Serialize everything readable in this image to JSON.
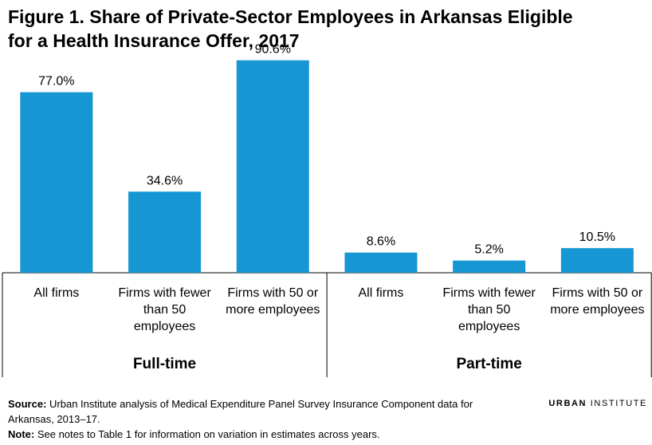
{
  "title_lines": [
    "Figure 1. Share of Private-Sector Employees in Arkansas Eligible",
    "for a Health Insurance Offer, 2017"
  ],
  "chart_data": {
    "type": "bar",
    "title": "Figure 1. Share of Private-Sector Employees in Arkansas Eligible for a Health Insurance Offer, 2017",
    "ylim": [
      0,
      100
    ],
    "grid": false,
    "legend": "none",
    "bar_color": "#1696d2",
    "groups": [
      {
        "name": "Full-time",
        "categories": [
          {
            "label_lines": [
              "All firms"
            ],
            "value": 77.0,
            "value_label": "77.0%"
          },
          {
            "label_lines": [
              "Firms with fewer",
              "than 50",
              "employees"
            ],
            "value": 34.6,
            "value_label": "34.6%"
          },
          {
            "label_lines": [
              "Firms with 50 or",
              "more employees"
            ],
            "value": 90.6,
            "value_label": "90.6%"
          }
        ]
      },
      {
        "name": "Part-time",
        "categories": [
          {
            "label_lines": [
              "All firms"
            ],
            "value": 8.6,
            "value_label": "8.6%"
          },
          {
            "label_lines": [
              "Firms with fewer",
              "than 50",
              "employees"
            ],
            "value": 5.2,
            "value_label": "5.2%"
          },
          {
            "label_lines": [
              "Firms with 50 or",
              "more employees"
            ],
            "value": 10.5,
            "value_label": "10.5%"
          }
        ]
      }
    ]
  },
  "footer": {
    "source_label": "Source:",
    "source_text": " Urban Institute analysis of Medical Expenditure Panel Survey Insurance Component data for Arkansas, 2013–17.",
    "note_label": "Note:",
    "note_text": " See notes to Table 1 for information on variation in estimates across years."
  },
  "logo": {
    "part1": "URBAN",
    "part2": "INSTITUTE"
  }
}
